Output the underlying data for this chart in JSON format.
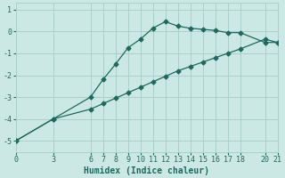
{
  "xlabel": "Humidex (Indice chaleur)",
  "bg_color": "#cce8e4",
  "grid_color": "#aacfca",
  "line_color": "#1a6b5e",
  "xlim": [
    0,
    21
  ],
  "ylim": [
    -5.5,
    1.3
  ],
  "xticks": [
    0,
    3,
    6,
    7,
    8,
    9,
    10,
    11,
    12,
    13,
    14,
    15,
    16,
    17,
    18,
    20,
    21
  ],
  "yticks": [
    -5,
    -4,
    -3,
    -2,
    -1,
    0,
    1
  ],
  "curve1_x": [
    0,
    3,
    6,
    7,
    8,
    9,
    10,
    11,
    12,
    13,
    14,
    15,
    16,
    17,
    18,
    20,
    21
  ],
  "curve1_y": [
    -5.0,
    -4.0,
    -3.0,
    -2.2,
    -1.5,
    -0.75,
    -0.35,
    0.15,
    0.45,
    0.25,
    0.15,
    0.1,
    0.05,
    -0.05,
    -0.05,
    -0.5,
    -0.5
  ],
  "curve2_x": [
    0,
    3,
    6,
    7,
    8,
    9,
    10,
    11,
    12,
    13,
    14,
    15,
    16,
    17,
    18,
    20,
    21
  ],
  "curve2_y": [
    -5.0,
    -4.0,
    -3.55,
    -3.3,
    -3.05,
    -2.8,
    -2.55,
    -2.3,
    -2.05,
    -1.8,
    -1.6,
    -1.4,
    -1.2,
    -1.0,
    -0.8,
    -0.35,
    -0.5
  ],
  "xlabel_fontsize": 7,
  "tick_fontsize": 6
}
